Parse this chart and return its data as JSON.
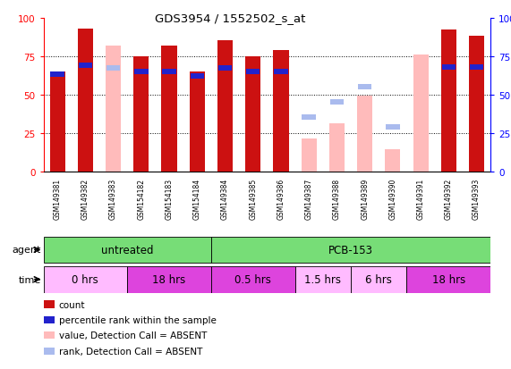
{
  "title": "GDS3954 / 1552502_s_at",
  "samples": [
    "GSM149381",
    "GSM149382",
    "GSM149383",
    "GSM154182",
    "GSM154183",
    "GSM154184",
    "GSM149384",
    "GSM149385",
    "GSM149386",
    "GSM149387",
    "GSM149388",
    "GSM149389",
    "GSM149390",
    "GSM149391",
    "GSM149392",
    "GSM149393"
  ],
  "count_present": [
    65,
    93,
    null,
    75,
    82,
    65,
    85,
    75,
    79,
    null,
    null,
    null,
    null,
    null,
    92,
    88
  ],
  "count_absent": [
    null,
    null,
    82,
    null,
    null,
    null,
    null,
    null,
    null,
    21,
    31,
    49,
    14,
    76,
    null,
    null
  ],
  "rank_present": [
    63,
    69,
    null,
    65,
    65,
    62,
    67,
    65,
    65,
    null,
    null,
    null,
    null,
    null,
    68,
    68
  ],
  "rank_absent": [
    null,
    null,
    67,
    null,
    null,
    null,
    null,
    null,
    null,
    35,
    45,
    55,
    29,
    null,
    null,
    null
  ],
  "ylim": [
    0,
    100
  ],
  "grid_lines": [
    25,
    50,
    75
  ],
  "bar_width": 0.55,
  "agent_groups": [
    {
      "label": "untreated",
      "start": 0,
      "end": 6,
      "color": "#77DD77"
    },
    {
      "label": "PCB-153",
      "start": 6,
      "end": 16,
      "color": "#77DD77"
    }
  ],
  "time_groups": [
    {
      "label": "0 hrs",
      "start": 0,
      "end": 3,
      "color": "#FFBBFF"
    },
    {
      "label": "18 hrs",
      "start": 3,
      "end": 6,
      "color": "#DD44DD"
    },
    {
      "label": "0.5 hrs",
      "start": 6,
      "end": 9,
      "color": "#DD44DD"
    },
    {
      "label": "1.5 hrs",
      "start": 9,
      "end": 11,
      "color": "#FFBBFF"
    },
    {
      "label": "6 hrs",
      "start": 11,
      "end": 13,
      "color": "#FFBBFF"
    },
    {
      "label": "18 hrs",
      "start": 13,
      "end": 16,
      "color": "#DD44DD"
    }
  ],
  "color_count_present": "#CC1111",
  "color_count_absent": "#FFBBBB",
  "color_rank_present": "#2222CC",
  "color_rank_absent": "#AABBEE",
  "legend_items": [
    {
      "label": "count",
      "color": "#CC1111"
    },
    {
      "label": "percentile rank within the sample",
      "color": "#2222CC"
    },
    {
      "label": "value, Detection Call = ABSENT",
      "color": "#FFBBBB"
    },
    {
      "label": "rank, Detection Call = ABSENT",
      "color": "#AABBEE"
    }
  ]
}
